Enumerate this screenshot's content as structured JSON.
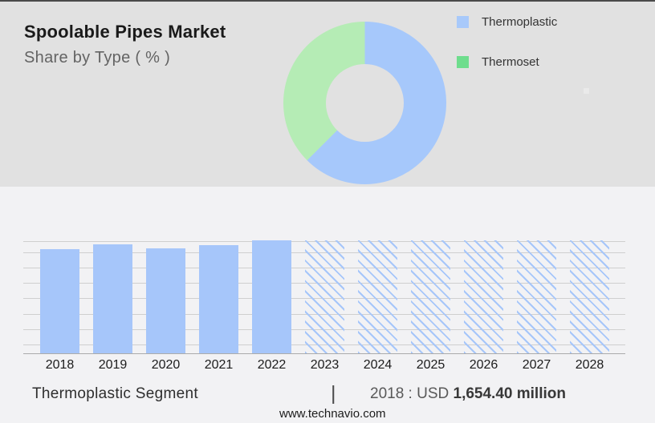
{
  "page": {
    "title": "Spoolable Pipes Market",
    "subtitle": "Share by Type ( % )",
    "website": "www.technavio.com"
  },
  "legend": {
    "items": [
      {
        "label": "Thermoplastic",
        "color": "#a8c9fa"
      },
      {
        "label": "Thermoset",
        "color": "#6edd8d"
      }
    ]
  },
  "footer": {
    "segment_label": "Thermoplastic Segment",
    "separator": "|",
    "value_prefix": "2018 : USD ",
    "value_bold": "1,654.40 million"
  },
  "colors": {
    "top_bg": "#e1e1e1",
    "bottom_bg": "#f2f2f4",
    "bar_blue": "#a6c6fa",
    "grid": "#cfcfcf",
    "baseline": "#ababab"
  },
  "chart_data": [
    {
      "type": "pie",
      "subtype": "donut",
      "title": "Spoolable Pipes Market",
      "subtitle": "Share by Type ( % )",
      "slices": [
        {
          "label": "Thermoplastic",
          "value": 62.5,
          "color": "#a6c8fb"
        },
        {
          "label": "Thermoset",
          "value": 37.5,
          "color": "#b5ecb5"
        }
      ],
      "start_angle_deg": 0,
      "direction": "clockwise",
      "legend_position": "right",
      "units": "percent (unlabeled slices)"
    },
    {
      "type": "bar",
      "categories": [
        "2018",
        "2019",
        "2020",
        "2021",
        "2022",
        "2023",
        "2024",
        "2025",
        "2026",
        "2027",
        "2028"
      ],
      "series": [
        {
          "name": "Thermoplastic segment market size (relative bar height, % of plot height)",
          "values": [
            92.2,
            96.5,
            92.9,
            96.1,
            100,
            100,
            100,
            100,
            100,
            100,
            100
          ]
        }
      ],
      "forecast_start_index": 5,
      "forecast_style": "diagonal-hatch",
      "known_point": {
        "year": "2018",
        "value": "USD 1,654.40 million"
      },
      "xlabel": "",
      "ylabel": "",
      "y_axis_labels_shown": false,
      "grid": true,
      "legend_position": "none"
    }
  ]
}
